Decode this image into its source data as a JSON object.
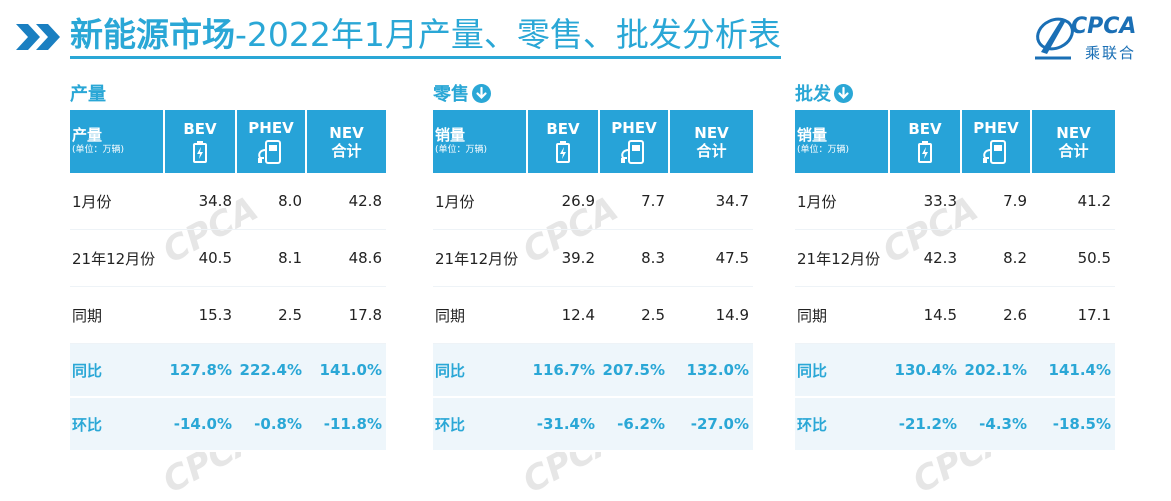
{
  "title": {
    "bold": "新能源市场",
    "rest": "-2022年1月产量、零售、批发分析表"
  },
  "logo": {
    "name": "CPCA",
    "cn": "乘联合"
  },
  "colors": {
    "accent": "#2aa7d6",
    "header_bg": "#27a3d8"
  },
  "columns": {
    "bev": "BEV",
    "phev": "PHEV",
    "nev1": "NEV",
    "nev2": "合计"
  },
  "sections": [
    {
      "title": "产量",
      "arrow": false,
      "header1": "产量",
      "header2": "(单位：万辆)",
      "rows": [
        {
          "label": "1月份",
          "bev": "34.8",
          "phev": "8.0",
          "nev": "42.8"
        },
        {
          "label": "21年12月份",
          "bev": "40.5",
          "phev": "8.1",
          "nev": "48.6"
        },
        {
          "label": "同期",
          "bev": "15.3",
          "phev": "2.5",
          "nev": "17.8"
        },
        {
          "label": "同比",
          "bev": "127.8%",
          "phev": "222.4%",
          "nev": "141.0%"
        },
        {
          "label": "环比",
          "bev": "-14.0%",
          "phev": "-0.8%",
          "nev": "-11.8%"
        }
      ]
    },
    {
      "title": "零售",
      "arrow": true,
      "header1": "销量",
      "header2": "(单位：万辆)",
      "rows": [
        {
          "label": "1月份",
          "bev": "26.9",
          "phev": "7.7",
          "nev": "34.7"
        },
        {
          "label": "21年12月份",
          "bev": "39.2",
          "phev": "8.3",
          "nev": "47.5"
        },
        {
          "label": "同期",
          "bev": "12.4",
          "phev": "2.5",
          "nev": "14.9"
        },
        {
          "label": "同比",
          "bev": "116.7%",
          "phev": "207.5%",
          "nev": "132.0%"
        },
        {
          "label": "环比",
          "bev": "-31.4%",
          "phev": "-6.2%",
          "nev": "-27.0%"
        }
      ]
    },
    {
      "title": "批发",
      "arrow": true,
      "header1": "销量",
      "header2": "(单位：万辆)",
      "rows": [
        {
          "label": "1月份",
          "bev": "33.3",
          "phev": "7.9",
          "nev": "41.2"
        },
        {
          "label": "21年12月份",
          "bev": "42.3",
          "phev": "8.2",
          "nev": "50.5"
        },
        {
          "label": "同期",
          "bev": "14.5",
          "phev": "2.6",
          "nev": "17.1"
        },
        {
          "label": "同比",
          "bev": "130.4%",
          "phev": "202.1%",
          "nev": "141.4%"
        },
        {
          "label": "环比",
          "bev": "-21.2%",
          "phev": "-4.3%",
          "nev": "-18.5%"
        }
      ]
    }
  ]
}
